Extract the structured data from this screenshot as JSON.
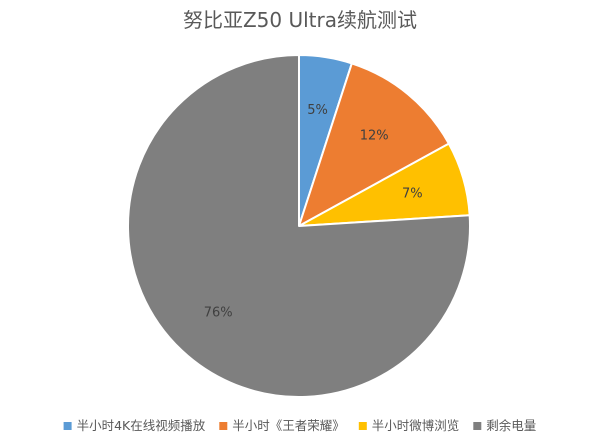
{
  "chart_data": {
    "type": "pie",
    "title": "努比亚Z50 Ultra续航测试",
    "categories": [
      "半小时4K在线视频播放",
      "半小时《王者荣耀》",
      "半小时微博浏览",
      "剩余电量"
    ],
    "values": [
      5,
      12,
      7,
      76
    ],
    "data_labels": [
      "5%",
      "12%",
      "7%",
      "76%"
    ],
    "colors": [
      "#5b9bd5",
      "#ed7d31",
      "#ffc000",
      "#7f7f7f"
    ],
    "start_angle_deg": 0,
    "direction": "clockwise",
    "legend_position": "bottom"
  }
}
